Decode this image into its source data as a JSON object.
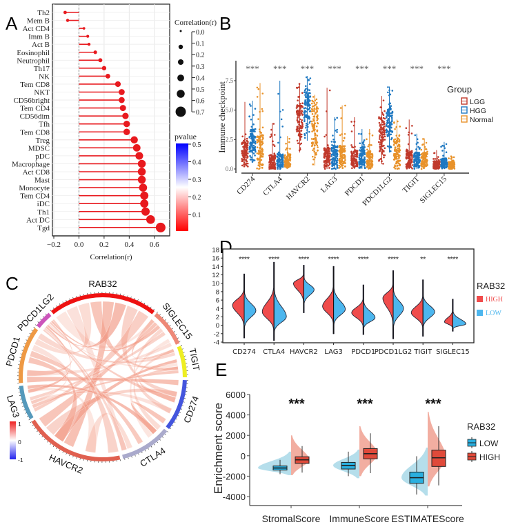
{
  "figure": {
    "panel_labels": [
      "A",
      "B",
      "C",
      "D",
      "E"
    ]
  },
  "chart_data": [
    {
      "panel": "A",
      "type": "scatter",
      "subtype": "lollipop",
      "title": "",
      "xlabel": "Correlation(r)",
      "ylabel": "",
      "xlim": [
        -0.2,
        0.7
      ],
      "xticks": [
        "−0.2",
        "0.0",
        "0.2",
        "0.4",
        "0.6"
      ],
      "xtick_values": [
        -0.2,
        0.0,
        0.2,
        0.4,
        0.6
      ],
      "grid": true,
      "categories": [
        "Th2",
        "Mem B",
        "Act CD4",
        "Imm B",
        "Act B",
        "Eosinophil",
        "Neutrophil",
        "Th17",
        "NK",
        "Tem CD8",
        "NKT",
        "CD56bright",
        "Tem CD4",
        "CD56dim",
        "Tfh",
        "Tem CD8",
        "Treg",
        "MDSC",
        "pDC",
        "Macrophage",
        "Act CD8",
        "Mast",
        "Monocyte",
        "Tem CD4",
        "iDC",
        "Th1",
        "Act DC",
        "Tgd"
      ],
      "values": [
        -0.11,
        -0.09,
        0.04,
        0.07,
        0.08,
        0.13,
        0.17,
        0.2,
        0.23,
        0.31,
        0.34,
        0.34,
        0.35,
        0.37,
        0.38,
        0.38,
        0.44,
        0.46,
        0.48,
        0.5,
        0.5,
        0.5,
        0.51,
        0.52,
        0.52,
        0.53,
        0.57,
        0.65
      ],
      "pvalues": [
        0.05,
        0.05,
        0.02,
        0.01,
        0.01,
        0.01,
        0.01,
        0.01,
        0.01,
        0.01,
        0.01,
        0.01,
        0.01,
        0.01,
        0.01,
        0.01,
        0.01,
        0.01,
        0.01,
        0.01,
        0.01,
        0.01,
        0.01,
        0.01,
        0.01,
        0.01,
        0.01,
        0.01
      ],
      "size_legend": {
        "title": "Correlation(r)",
        "labels": [
          "0.0",
          "0.1",
          "0.2",
          "0.3",
          "0.4",
          "0.5",
          "0.6",
          "0.7"
        ],
        "dot_values": [
          0.0,
          0.2,
          0.3,
          0.4,
          0.5,
          0.7
        ]
      },
      "color_legend": {
        "title": "pvalue",
        "labels": [
          "0.5",
          "0.4",
          "0.3",
          "0.2",
          "0.1"
        ],
        "low_color": "#ff0000",
        "mid_color": "#ffffff",
        "high_color": "#0000ff"
      },
      "color": "#e8191e"
    },
    {
      "panel": "B",
      "type": "scatter",
      "subtype": "jitter-boxplot",
      "title": "",
      "xlabel": "",
      "ylabel": "Immune checkpoint",
      "ylim": [
        0,
        8.5
      ],
      "yticks": [
        "0.0",
        "2.5",
        "5.0",
        "7.5"
      ],
      "ytick_values": [
        0,
        2.5,
        5.0,
        7.5
      ],
      "categories": [
        "CD274",
        "CTLA4",
        "HAVCR2",
        "LAG3",
        "PDCD1",
        "PDCD1LG2",
        "TIGIT",
        "SIGLEC15"
      ],
      "significance": [
        "***",
        "***",
        "***",
        "***",
        "***",
        "***",
        "***",
        "***"
      ],
      "legend": {
        "title": "Group",
        "position": "right"
      },
      "series": [
        {
          "name": "LGG",
          "color": "#c0392b",
          "min": [
            0.2,
            0.0,
            1.4,
            0.0,
            0.0,
            0.4,
            0.0,
            0.0
          ],
          "max": [
            5.7,
            3.9,
            7.3,
            6.9,
            4.4,
            6.2,
            4.2,
            1.6
          ],
          "q1": [
            0.6,
            0.0,
            3.2,
            0.2,
            0.2,
            1.4,
            0.1,
            0.0
          ],
          "median": [
            1.4,
            0.6,
            4.4,
            1.0,
            0.8,
            2.8,
            0.8,
            0.3
          ],
          "q3": [
            2.4,
            1.2,
            5.6,
            1.8,
            1.6,
            4.4,
            1.6,
            0.7
          ]
        },
        {
          "name": "HGG",
          "color": "#1f78c1",
          "min": [
            0.6,
            0.0,
            2.4,
            0.0,
            0.0,
            1.4,
            0.0,
            0.0
          ],
          "max": [
            5.8,
            7.5,
            7.9,
            4.4,
            3.4,
            7.0,
            3.0,
            2.3
          ],
          "q1": [
            1.4,
            0.2,
            4.2,
            0.3,
            0.3,
            2.8,
            0.2,
            0.1
          ],
          "median": [
            2.4,
            0.7,
            5.4,
            1.2,
            1.0,
            4.0,
            0.8,
            0.4
          ],
          "q3": [
            3.4,
            1.3,
            6.5,
            2.0,
            1.8,
            5.1,
            1.4,
            0.9
          ]
        },
        {
          "name": "Normal",
          "color": "#e8922a",
          "min": [
            0.0,
            0.0,
            0.3,
            0.0,
            0.0,
            0.0,
            0.0,
            0.0
          ],
          "max": [
            7.3,
            2.8,
            6.3,
            5.4,
            3.4,
            4.2,
            2.6,
            1.1
          ],
          "q1": [
            0.3,
            0.1,
            1.2,
            0.2,
            0.1,
            0.2,
            0.1,
            0.0
          ],
          "median": [
            1.5,
            0.6,
            3.2,
            1.0,
            0.7,
            1.4,
            0.7,
            0.3
          ],
          "q3": [
            2.9,
            1.2,
            5.3,
            2.0,
            1.5,
            2.6,
            1.4,
            0.6
          ]
        }
      ]
    },
    {
      "panel": "C",
      "type": "chord",
      "title": "",
      "sectors": [
        {
          "name": "RAB32",
          "color": "#ee1111"
        },
        {
          "name": "SIGLEC15",
          "color": "#ee8877"
        },
        {
          "name": "TIGIT",
          "color": "#eeee22"
        },
        {
          "name": "CD274",
          "color": "#4455dd"
        },
        {
          "name": "CTLA4",
          "color": "#aaaacc"
        },
        {
          "name": "HAVCR2",
          "color": "#e06050"
        },
        {
          "name": "LAG3",
          "color": "#5599bb"
        },
        {
          "name": "PDCD1",
          "color": "#ee9944"
        },
        {
          "name": "PDCD1LG2",
          "color": "#cc55bb"
        }
      ],
      "colorbar": {
        "labels": [
          "1",
          "0",
          "-1"
        ],
        "low_color": "#2222ee",
        "mid_color": "#ffffff",
        "high_color": "#ee2222"
      },
      "link_color": "#f29a85"
    },
    {
      "panel": "D",
      "type": "violin",
      "subtype": "split-violin",
      "title": "",
      "ylim": [
        -4,
        18
      ],
      "yticks": [
        "-4",
        "-2",
        "0",
        "2",
        "4",
        "6",
        "8",
        "10",
        "12",
        "14",
        "16",
        "18"
      ],
      "ytick_values": [
        -4,
        -2,
        0,
        2,
        4,
        6,
        8,
        10,
        12,
        14,
        16,
        18
      ],
      "categories": [
        "CD274",
        "CTLA4",
        "HAVCR2",
        "LAG3",
        "PDCD1",
        "PDCD1LG2",
        "TIGIT",
        "SIGLEC15"
      ],
      "significance": [
        "****",
        "****",
        "****",
        "****",
        "****",
        "****",
        "**",
        "****"
      ],
      "legend": {
        "title": "RAB32",
        "position": "right"
      },
      "series": [
        {
          "name": "HIGH",
          "color": "#f04c4c",
          "mode": [
            4.8,
            3.2,
            10.0,
            4.5,
            3.0,
            6.5,
            3.0,
            0.8
          ],
          "min": [
            -3.0,
            -3.6,
            3.0,
            -2.0,
            -2.2,
            -3.2,
            -2.6,
            -1.4
          ],
          "max": [
            12.2,
            15.0,
            14.3,
            14.0,
            9.6,
            13.0,
            10.8,
            6.2
          ],
          "width": [
            0.85,
            0.85,
            0.75,
            0.8,
            0.85,
            0.75,
            0.85,
            0.6
          ]
        },
        {
          "name": "LOW",
          "color": "#4cb6ee",
          "mode": [
            3.5,
            2.0,
            8.5,
            3.8,
            1.8,
            4.0,
            3.2,
            0.3
          ],
          "min": [
            -3.0,
            -3.6,
            3.0,
            -2.0,
            -2.2,
            -3.2,
            -2.6,
            -1.4
          ],
          "max": [
            12.2,
            15.0,
            14.3,
            14.0,
            9.6,
            13.0,
            10.8,
            6.2
          ],
          "width": [
            0.85,
            0.9,
            0.75,
            0.85,
            0.85,
            0.75,
            0.85,
            0.95
          ]
        }
      ]
    },
    {
      "panel": "E",
      "type": "violin",
      "subtype": "half-violin-boxplot",
      "title": "",
      "ylabel": "Enrichment score",
      "ylim": [
        -4500,
        6000
      ],
      "yticks": [
        "-4000",
        "-2000",
        "0",
        "2000",
        "4000",
        "6000"
      ],
      "ytick_values": [
        -4000,
        -2000,
        0,
        2000,
        4000,
        6000
      ],
      "categories": [
        "StromalScore",
        "ImmuneScore",
        "ESTIMATEScore"
      ],
      "significance": [
        "***",
        "***",
        "***"
      ],
      "legend": {
        "title": "RAB32",
        "position": "right"
      },
      "series": [
        {
          "name": "LOW",
          "color": "#2ab0e0",
          "violin_color": "#a8d8e8",
          "whisker_low": [
            -1800,
            -2000,
            -3800
          ],
          "q1": [
            -1400,
            -1300,
            -2700
          ],
          "median": [
            -1200,
            -950,
            -2150
          ],
          "q3": [
            -1000,
            -650,
            -1600
          ],
          "whisker_high": [
            -400,
            400,
            -50
          ],
          "violin_min": [
            -1900,
            -2200,
            -3900
          ],
          "violin_max": [
            400,
            600,
            800
          ]
        },
        {
          "name": "HIGH",
          "color": "#e04a3a",
          "violin_color": "#f0a090",
          "whisker_low": [
            -1650,
            -1700,
            -2900
          ],
          "q1": [
            -750,
            -300,
            -1050
          ],
          "median": [
            -400,
            200,
            -200
          ],
          "q3": [
            -100,
            700,
            550
          ],
          "whisker_high": [
            950,
            2200,
            2900
          ],
          "violin_min": [
            -1900,
            -2000,
            -3000
          ],
          "violin_max": [
            2000,
            2900,
            4300
          ]
        }
      ]
    }
  ]
}
